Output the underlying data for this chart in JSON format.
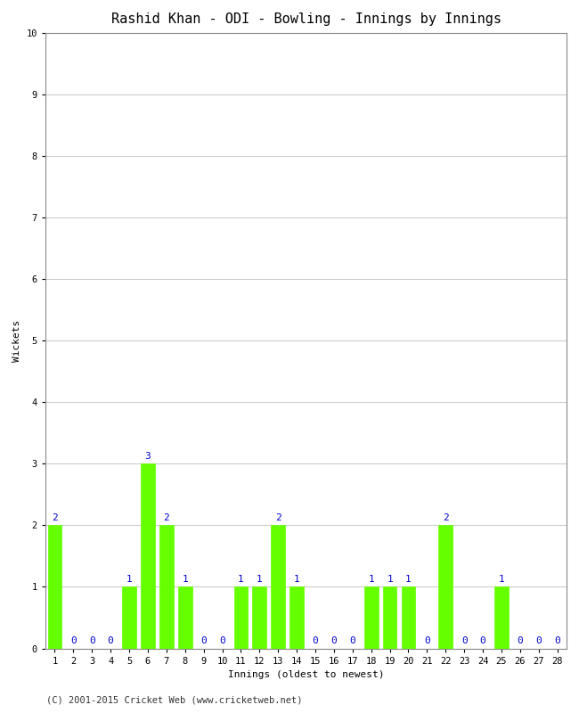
{
  "title": "Rashid Khan - ODI - Bowling - Innings by Innings",
  "xlabel": "Innings (oldest to newest)",
  "ylabel": "Wickets",
  "xlim": [
    0.5,
    28.5
  ],
  "ylim": [
    0,
    10
  ],
  "yticks": [
    0,
    1,
    2,
    3,
    4,
    5,
    6,
    7,
    8,
    9,
    10
  ],
  "xticks": [
    1,
    2,
    3,
    4,
    5,
    6,
    7,
    8,
    9,
    10,
    11,
    12,
    13,
    14,
    15,
    16,
    17,
    18,
    19,
    20,
    21,
    22,
    23,
    24,
    25,
    26,
    27,
    28
  ],
  "innings": [
    1,
    2,
    3,
    4,
    5,
    6,
    7,
    8,
    9,
    10,
    11,
    12,
    13,
    14,
    15,
    16,
    17,
    18,
    19,
    20,
    21,
    22,
    23,
    24,
    25,
    26,
    27,
    28
  ],
  "wickets": [
    2,
    0,
    0,
    0,
    1,
    3,
    2,
    1,
    0,
    0,
    1,
    1,
    2,
    1,
    0,
    0,
    0,
    1,
    1,
    1,
    0,
    2,
    0,
    0,
    1,
    0,
    0,
    0
  ],
  "bar_color": "#66ff00",
  "bar_edge_color": "#66ff00",
  "label_color": "#0000cc",
  "background_color": "#ffffff",
  "plot_bg_color": "#ffffff",
  "grid_color": "#cccccc",
  "footer": "(C) 2001-2015 Cricket Web (www.cricketweb.net)",
  "title_fontsize": 11,
  "label_fontsize": 8,
  "tick_fontsize": 7.5,
  "footer_fontsize": 7.5,
  "bar_label_fontsize": 8
}
